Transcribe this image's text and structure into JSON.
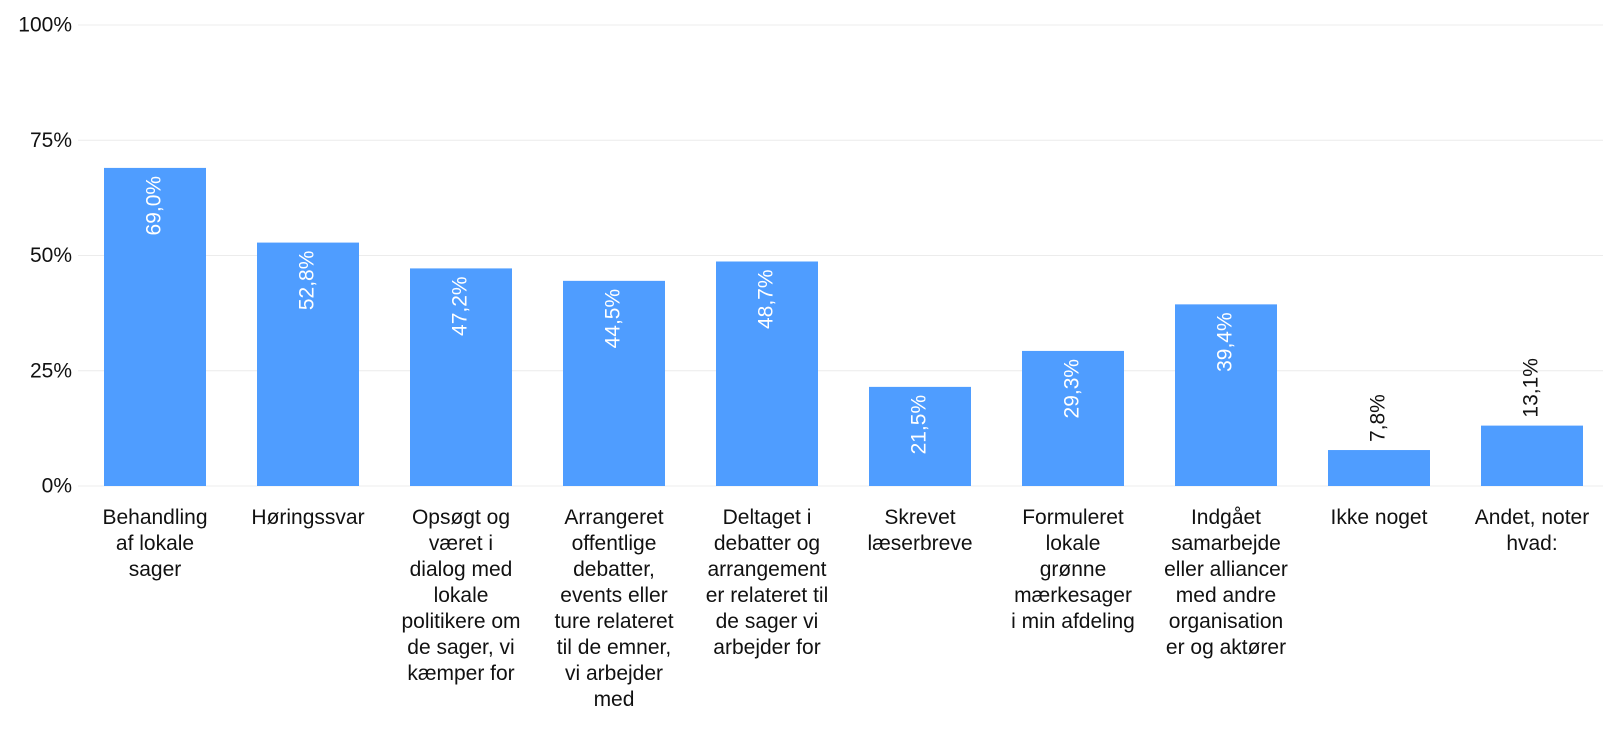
{
  "chart_data": {
    "type": "bar",
    "categories": [
      "Behandling af lokale sager",
      "Høringssvar",
      "Opsøgt og været i dialog med lokale politikere om de sager, vi kæmper for",
      "Arrangeret offentlige debatter, events eller ture relateret til de emner, vi arbejder med",
      "Deltaget i debatter og arrangementer relateret til de sager vi arbejder for",
      "Skrevet læserbreve",
      "Formuleret lokale grønne mærkesager i min afdeling",
      "Indgået samarbejde eller alliancer med andre organisationer og aktører",
      "Ikke noget",
      "Andet, noter hvad:"
    ],
    "values": [
      69.0,
      52.8,
      47.2,
      44.5,
      48.7,
      21.5,
      29.3,
      39.4,
      7.8,
      13.1
    ],
    "data_labels": [
      "69,0%",
      "52,8%",
      "47,2%",
      "44,5%",
      "48,7%",
      "21,5%",
      "29,3%",
      "39,4%",
      "7,8%",
      "13,1%"
    ],
    "y_ticks": [
      {
        "value": 0,
        "label": "0%"
      },
      {
        "value": 25,
        "label": "25%"
      },
      {
        "value": 50,
        "label": "50%"
      },
      {
        "value": 75,
        "label": "75%"
      },
      {
        "value": 100,
        "label": "100%"
      }
    ],
    "ylim": [
      0,
      100
    ],
    "grid": true,
    "title": "",
    "xlabel": "",
    "ylabel": "",
    "colors": {
      "bar": "#4f9dff",
      "grid": "#ececec",
      "text": "#111111",
      "label_inside": "#ffffff"
    }
  }
}
